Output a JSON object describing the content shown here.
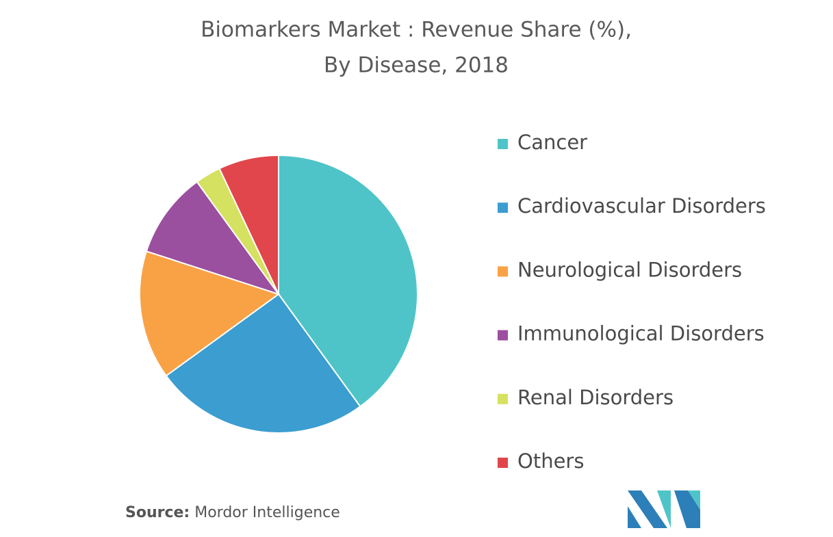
{
  "chart_data": {
    "type": "pie",
    "title": [
      "Biomarkers Market : Revenue Share (%),",
      "By Disease, 2018"
    ],
    "categories": [
      "Cancer",
      "Cardiovascular Disorders",
      "Neurological Disorders",
      "Immunological Disorders",
      "Renal Disorders",
      "Others"
    ],
    "values": [
      40,
      25,
      15,
      10,
      3,
      7
    ],
    "colors": [
      "#4fc4c8",
      "#3b9dd0",
      "#f9a245",
      "#9b4f9f",
      "#d5e160",
      "#e0464b"
    ],
    "legend": "right",
    "source": {
      "label": "Source:",
      "text": "Mordor Intelligence"
    }
  }
}
